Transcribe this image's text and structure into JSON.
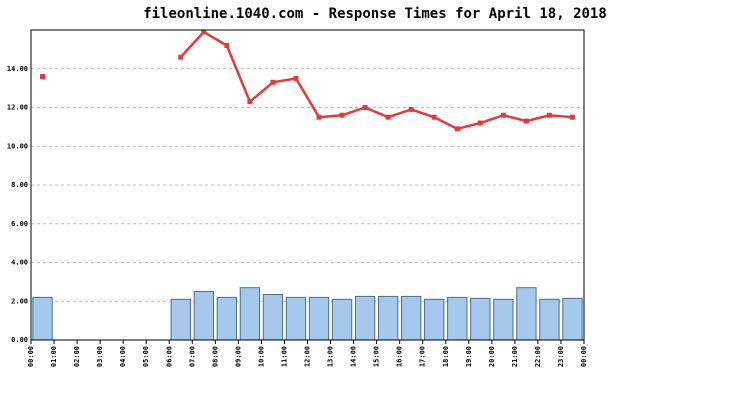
{
  "chart_data": {
    "type": "combo",
    "title": "fileonline.1040.com - Response Times for April 18, 2018",
    "x": [
      0,
      1,
      2,
      3,
      4,
      5,
      6,
      7,
      8,
      9,
      10,
      11,
      12,
      13,
      14,
      15,
      16,
      17,
      18,
      19,
      20,
      21,
      22,
      23
    ],
    "xlim": [
      0,
      24
    ],
    "xticks": [
      {
        "value": 0,
        "label": "00:00"
      },
      {
        "value": 1,
        "label": "01:00"
      },
      {
        "value": 2,
        "label": "02:00"
      },
      {
        "value": 3,
        "label": "03:00"
      },
      {
        "value": 4,
        "label": "04:00"
      },
      {
        "value": 5,
        "label": "05:00"
      },
      {
        "value": 6,
        "label": "06:00"
      },
      {
        "value": 7,
        "label": "07:00"
      },
      {
        "value": 8,
        "label": "08:00"
      },
      {
        "value": 9,
        "label": "09:00"
      },
      {
        "value": 10,
        "label": "10:00"
      },
      {
        "value": 11,
        "label": "11:00"
      },
      {
        "value": 12,
        "label": "12:00"
      },
      {
        "value": 13,
        "label": "13:00"
      },
      {
        "value": 14,
        "label": "14:00"
      },
      {
        "value": 15,
        "label": "15:00"
      },
      {
        "value": 16,
        "label": "16:00"
      },
      {
        "value": 17,
        "label": "17:00"
      },
      {
        "value": 18,
        "label": "18:00"
      },
      {
        "value": 19,
        "label": "19:00"
      },
      {
        "value": 20,
        "label": "20:00"
      },
      {
        "value": 21,
        "label": "21:00"
      },
      {
        "value": 22,
        "label": "22:00"
      },
      {
        "value": 23,
        "label": "23:00"
      },
      {
        "value": 24,
        "label": "00:00"
      }
    ],
    "ylim": [
      0,
      16
    ],
    "yticks": [
      {
        "value": 0,
        "label": "0.00"
      },
      {
        "value": 2,
        "label": "2.00"
      },
      {
        "value": 4,
        "label": "4.00"
      },
      {
        "value": 6,
        "label": "6.00"
      },
      {
        "value": 8,
        "label": "8.00"
      },
      {
        "value": 10,
        "label": "10.00"
      },
      {
        "value": 12,
        "label": "12.00"
      },
      {
        "value": 14,
        "label": "14.00"
      }
    ],
    "grid": true,
    "series": [
      {
        "type": "bar",
        "color": "#a6c8ec",
        "values": [
          2.2,
          null,
          null,
          null,
          null,
          null,
          2.1,
          2.5,
          2.2,
          2.7,
          2.35,
          2.2,
          2.2,
          2.1,
          2.25,
          2.25,
          2.25,
          2.1,
          2.2,
          2.15,
          2.1,
          2.7,
          2.1,
          2.15
        ]
      },
      {
        "type": "line",
        "color": "#e03c3c",
        "values": [
          13.6,
          null,
          null,
          null,
          null,
          null,
          14.6,
          15.9,
          15.2,
          12.3,
          13.3,
          13.5,
          11.5,
          11.6,
          12.0,
          11.5,
          11.9,
          11.5,
          10.9,
          11.2,
          11.6,
          11.3,
          11.6,
          11.5
        ]
      }
    ]
  }
}
